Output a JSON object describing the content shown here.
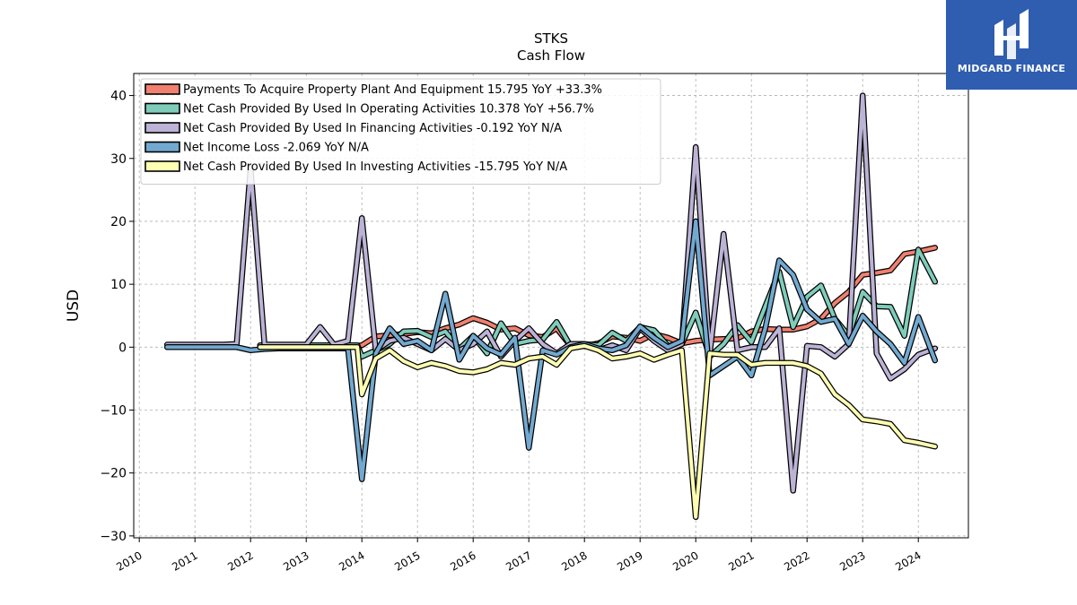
{
  "chart_data": {
    "type": "line",
    "title": "STKS",
    "subtitle": "Cash Flow",
    "ylabel": "USD",
    "xlabel": "",
    "xlim": [
      2009.9,
      2024.9
    ],
    "ylim": [
      -30.3,
      43.5
    ],
    "yticks": [
      -30,
      -20,
      -10,
      0,
      10,
      20,
      30,
      40
    ],
    "xticks": [
      2010,
      2011,
      2012,
      2013,
      2014,
      2015,
      2016,
      2017,
      2018,
      2019,
      2020,
      2021,
      2022,
      2023,
      2024
    ],
    "grid": true,
    "legend_position": "top-left",
    "series": [
      {
        "name": "Payments To Acquire Property Plant And Equipment  15.795 YoY +33.3%",
        "color": "#f08070",
        "points": [
          [
            2012.17,
            0.2
          ],
          [
            2012.42,
            0.2
          ],
          [
            2012.67,
            0.2
          ],
          [
            2012.92,
            0.2
          ],
          [
            2013.17,
            0.2
          ],
          [
            2013.42,
            0.2
          ],
          [
            2013.67,
            0.2
          ],
          [
            2013.92,
            0.2
          ],
          [
            2014.0,
            0.3
          ],
          [
            2014.25,
            1.7
          ],
          [
            2014.5,
            1.9
          ],
          [
            2014.75,
            2.1
          ],
          [
            2015.0,
            2.4
          ],
          [
            2015.25,
            2.2
          ],
          [
            2015.5,
            3.0
          ],
          [
            2015.75,
            3.6
          ],
          [
            2016.0,
            4.6
          ],
          [
            2016.25,
            3.9
          ],
          [
            2016.5,
            2.8
          ],
          [
            2016.75,
            3.0
          ],
          [
            2017.0,
            1.9
          ],
          [
            2017.25,
            1.6
          ],
          [
            2017.5,
            3.0
          ],
          [
            2017.75,
            0.2
          ],
          [
            2018.0,
            0.2
          ],
          [
            2018.25,
            0.6
          ],
          [
            2018.5,
            1.7
          ],
          [
            2018.75,
            1.5
          ],
          [
            2019.0,
            1.0
          ],
          [
            2019.25,
            2.1
          ],
          [
            2019.5,
            1.5
          ],
          [
            2019.75,
            0.6
          ],
          [
            2020.0,
            1.0
          ],
          [
            2020.25,
            1.2
          ],
          [
            2020.5,
            1.3
          ],
          [
            2020.75,
            1.4
          ],
          [
            2021.0,
            2.5
          ],
          [
            2021.25,
            2.9
          ],
          [
            2021.5,
            2.8
          ],
          [
            2021.75,
            2.8
          ],
          [
            2022.0,
            3.3
          ],
          [
            2022.25,
            4.5
          ],
          [
            2022.5,
            7.0
          ],
          [
            2022.75,
            8.8
          ],
          [
            2023.0,
            11.5
          ],
          [
            2023.25,
            11.8
          ],
          [
            2023.5,
            12.2
          ],
          [
            2023.75,
            14.8
          ],
          [
            2024.0,
            15.2
          ],
          [
            2024.3,
            15.8
          ]
        ]
      },
      {
        "name": "Net Cash Provided By Used In Operating Activities  10.378 YoY +56.7%",
        "color": "#7fccba",
        "points": [
          [
            2012.17,
            0.3
          ],
          [
            2012.42,
            0.3
          ],
          [
            2012.67,
            0.3
          ],
          [
            2012.92,
            0.3
          ],
          [
            2013.17,
            0.3
          ],
          [
            2013.42,
            0.3
          ],
          [
            2013.67,
            0.3
          ],
          [
            2013.92,
            0.3
          ],
          [
            2014.0,
            -1.5
          ],
          [
            2014.25,
            -0.5
          ],
          [
            2014.5,
            0.5
          ],
          [
            2014.75,
            2.5
          ],
          [
            2015.0,
            2.6
          ],
          [
            2015.25,
            1.6
          ],
          [
            2015.5,
            2.5
          ],
          [
            2015.75,
            -0.3
          ],
          [
            2016.0,
            1.8
          ],
          [
            2016.25,
            -1.0
          ],
          [
            2016.5,
            3.8
          ],
          [
            2016.75,
            0.5
          ],
          [
            2017.0,
            1.0
          ],
          [
            2017.25,
            1.2
          ],
          [
            2017.5,
            4.0
          ],
          [
            2017.75,
            0.2
          ],
          [
            2018.0,
            0.5
          ],
          [
            2018.25,
            0.3
          ],
          [
            2018.5,
            2.3
          ],
          [
            2018.75,
            1.0
          ],
          [
            2019.0,
            3.2
          ],
          [
            2019.25,
            2.7
          ],
          [
            2019.5,
            0.2
          ],
          [
            2019.75,
            0.5
          ],
          [
            2020.0,
            5.5
          ],
          [
            2020.25,
            -1.5
          ],
          [
            2020.5,
            0.5
          ],
          [
            2020.75,
            3.5
          ],
          [
            2021.0,
            0.8
          ],
          [
            2021.25,
            6.5
          ],
          [
            2021.5,
            12.0
          ],
          [
            2021.75,
            3.2
          ],
          [
            2022.0,
            8.0
          ],
          [
            2022.25,
            9.8
          ],
          [
            2022.5,
            4.5
          ],
          [
            2022.75,
            1.8
          ],
          [
            2023.0,
            8.8
          ],
          [
            2023.25,
            6.5
          ],
          [
            2023.5,
            6.4
          ],
          [
            2023.75,
            1.8
          ],
          [
            2024.0,
            15.5
          ],
          [
            2024.3,
            10.4
          ]
        ]
      },
      {
        "name": "Net Cash Provided By Used In Financing Activities  -0.192 YoY N/A",
        "color": "#bcb3d6",
        "points": [
          [
            2010.5,
            0.4
          ],
          [
            2010.75,
            0.4
          ],
          [
            2011.0,
            0.4
          ],
          [
            2011.25,
            0.4
          ],
          [
            2011.5,
            0.4
          ],
          [
            2011.75,
            0.5
          ],
          [
            2012.0,
            28.5
          ],
          [
            2012.25,
            0.4
          ],
          [
            2012.5,
            0.4
          ],
          [
            2012.75,
            0.4
          ],
          [
            2013.0,
            0.4
          ],
          [
            2013.25,
            3.2
          ],
          [
            2013.5,
            0.4
          ],
          [
            2013.75,
            1.0
          ],
          [
            2014.0,
            20.5
          ],
          [
            2014.25,
            -0.5
          ],
          [
            2014.5,
            1.0
          ],
          [
            2014.75,
            1.5
          ],
          [
            2015.0,
            0.5
          ],
          [
            2015.25,
            -0.5
          ],
          [
            2015.5,
            1.3
          ],
          [
            2015.75,
            -0.5
          ],
          [
            2016.0,
            0.5
          ],
          [
            2016.25,
            2.5
          ],
          [
            2016.5,
            -1.5
          ],
          [
            2016.75,
            1.0
          ],
          [
            2017.0,
            3.0
          ],
          [
            2017.25,
            0.5
          ],
          [
            2017.5,
            -1.0
          ],
          [
            2017.75,
            0.5
          ],
          [
            2018.0,
            0.5
          ],
          [
            2018.25,
            -0.5
          ],
          [
            2018.5,
            0.3
          ],
          [
            2018.75,
            -0.5
          ],
          [
            2019.0,
            3.0
          ],
          [
            2019.25,
            1.0
          ],
          [
            2019.5,
            -0.5
          ],
          [
            2019.75,
            0.5
          ],
          [
            2020.0,
            31.8
          ],
          [
            2020.25,
            -1.2
          ],
          [
            2020.5,
            18.0
          ],
          [
            2020.75,
            -0.5
          ],
          [
            2021.0,
            0.0
          ],
          [
            2021.25,
            0.0
          ],
          [
            2021.5,
            3.0
          ],
          [
            2021.75,
            -22.8
          ],
          [
            2022.0,
            0.2
          ],
          [
            2022.25,
            0.0
          ],
          [
            2022.5,
            -1.5
          ],
          [
            2022.75,
            0.5
          ],
          [
            2023.0,
            40.0
          ],
          [
            2023.25,
            -1.0
          ],
          [
            2023.5,
            -5.0
          ],
          [
            2023.75,
            -3.5
          ],
          [
            2024.0,
            -1.2
          ],
          [
            2024.3,
            -0.2
          ]
        ]
      },
      {
        "name": "Net Income Loss  -2.069 YoY N/A",
        "color": "#72a9d0",
        "points": [
          [
            2010.5,
            0.0
          ],
          [
            2010.75,
            0.0
          ],
          [
            2011.0,
            0.0
          ],
          [
            2011.25,
            0.0
          ],
          [
            2011.5,
            0.0
          ],
          [
            2011.75,
            0.0
          ],
          [
            2012.0,
            -0.5
          ],
          [
            2012.25,
            -0.3
          ],
          [
            2012.5,
            -0.2
          ],
          [
            2012.75,
            -0.2
          ],
          [
            2013.0,
            -0.2
          ],
          [
            2013.25,
            -0.2
          ],
          [
            2013.5,
            -0.2
          ],
          [
            2013.75,
            -0.2
          ],
          [
            2014.0,
            -21.0
          ],
          [
            2014.25,
            -1.0
          ],
          [
            2014.5,
            3.0
          ],
          [
            2014.75,
            0.5
          ],
          [
            2015.0,
            1.0
          ],
          [
            2015.25,
            -0.5
          ],
          [
            2015.5,
            8.5
          ],
          [
            2015.75,
            -2.0
          ],
          [
            2016.0,
            1.8
          ],
          [
            2016.25,
            -0.2
          ],
          [
            2016.5,
            -1.2
          ],
          [
            2016.75,
            1.5
          ],
          [
            2017.0,
            -16.0
          ],
          [
            2017.25,
            -0.5
          ],
          [
            2017.5,
            -1.2
          ],
          [
            2017.75,
            0.0
          ],
          [
            2018.0,
            0.5
          ],
          [
            2018.25,
            -0.2
          ],
          [
            2018.5,
            -0.5
          ],
          [
            2018.75,
            0.3
          ],
          [
            2019.0,
            3.3
          ],
          [
            2019.25,
            1.5
          ],
          [
            2019.5,
            0.0
          ],
          [
            2019.75,
            1.0
          ],
          [
            2020.0,
            20.0
          ],
          [
            2020.25,
            -4.5
          ],
          [
            2020.5,
            -3.0
          ],
          [
            2020.75,
            -1.5
          ],
          [
            2021.0,
            -4.5
          ],
          [
            2021.25,
            3.0
          ],
          [
            2021.5,
            13.8
          ],
          [
            2021.75,
            11.5
          ],
          [
            2022.0,
            6.0
          ],
          [
            2022.25,
            4.0
          ],
          [
            2022.5,
            4.5
          ],
          [
            2022.75,
            0.5
          ],
          [
            2023.0,
            5.0
          ],
          [
            2023.25,
            2.5
          ],
          [
            2023.5,
            0.5
          ],
          [
            2023.75,
            -2.5
          ],
          [
            2024.0,
            4.8
          ],
          [
            2024.3,
            -2.1
          ]
        ]
      },
      {
        "name": "Net Cash Provided By Used In Investing Activities  -15.795 YoY N/A",
        "color": "#ffffb3",
        "points": [
          [
            2012.17,
            0.0
          ],
          [
            2012.42,
            0.0
          ],
          [
            2012.67,
            0.0
          ],
          [
            2012.92,
            0.0
          ],
          [
            2013.17,
            0.0
          ],
          [
            2013.42,
            0.0
          ],
          [
            2013.67,
            0.0
          ],
          [
            2013.92,
            0.0
          ],
          [
            2014.0,
            -7.5
          ],
          [
            2014.25,
            -1.8
          ],
          [
            2014.5,
            -0.5
          ],
          [
            2014.75,
            -2.2
          ],
          [
            2015.0,
            -3.2
          ],
          [
            2015.25,
            -2.5
          ],
          [
            2015.5,
            -3.0
          ],
          [
            2015.75,
            -3.8
          ],
          [
            2016.0,
            -4.0
          ],
          [
            2016.25,
            -3.5
          ],
          [
            2016.5,
            -2.5
          ],
          [
            2016.75,
            -2.8
          ],
          [
            2017.0,
            -1.8
          ],
          [
            2017.25,
            -1.5
          ],
          [
            2017.5,
            -2.8
          ],
          [
            2017.75,
            -0.2
          ],
          [
            2018.0,
            0.2
          ],
          [
            2018.25,
            -0.5
          ],
          [
            2018.5,
            -1.8
          ],
          [
            2018.75,
            -1.5
          ],
          [
            2019.0,
            -1.0
          ],
          [
            2019.25,
            -2.0
          ],
          [
            2019.5,
            -1.2
          ],
          [
            2019.75,
            -0.5
          ],
          [
            2020.0,
            -27.0
          ],
          [
            2020.25,
            -1.0
          ],
          [
            2020.5,
            -1.2
          ],
          [
            2020.75,
            -1.2
          ],
          [
            2021.0,
            -2.8
          ],
          [
            2021.25,
            -2.5
          ],
          [
            2021.5,
            -2.5
          ],
          [
            2021.75,
            -2.5
          ],
          [
            2022.0,
            -3.0
          ],
          [
            2022.25,
            -4.2
          ],
          [
            2022.5,
            -7.5
          ],
          [
            2022.75,
            -9.2
          ],
          [
            2023.0,
            -11.5
          ],
          [
            2023.25,
            -11.8
          ],
          [
            2023.5,
            -12.2
          ],
          [
            2023.75,
            -14.8
          ],
          [
            2024.0,
            -15.2
          ],
          [
            2024.3,
            -15.8
          ]
        ]
      }
    ]
  },
  "logo": {
    "text": "MIDGARD FINANCE",
    "icon": "midgard-logo-icon",
    "background": "#2f5db0"
  }
}
